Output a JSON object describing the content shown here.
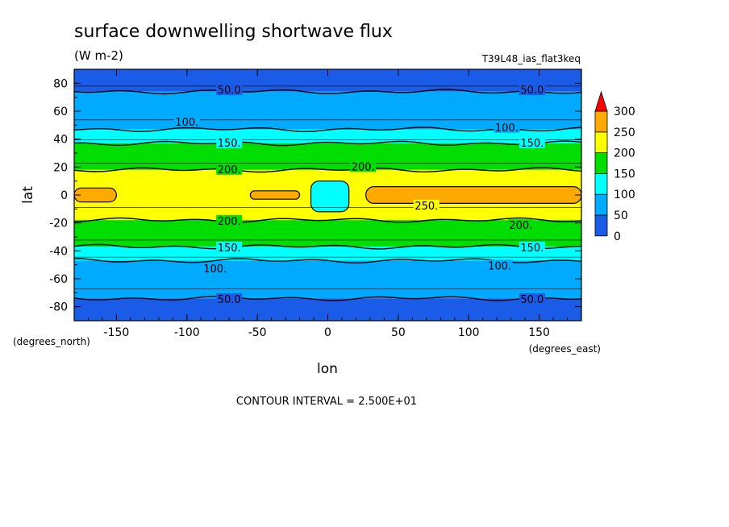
{
  "chart_data": {
    "type": "heatmap",
    "title": "surface downwelling shortwave flux",
    "units": "(W m-2)",
    "dataset": "T39L48_ias_flat3keq",
    "xlabel": "lon",
    "ylabel": "lat",
    "x_units": "(degrees_east)",
    "y_units": "(degrees_north)",
    "xlim": [
      -180,
      180
    ],
    "ylim": [
      -90,
      90
    ],
    "x_ticks": [
      -150,
      -100,
      -50,
      0,
      50,
      100,
      150
    ],
    "x_tick_labels": [
      "-150",
      "-100",
      "-50",
      "0",
      "50",
      "100",
      "150"
    ],
    "y_ticks": [
      80,
      60,
      40,
      20,
      0,
      -20,
      -40,
      -60,
      -80
    ],
    "y_tick_labels": [
      "80",
      "60",
      "40",
      "20",
      "0",
      "-20",
      "-40",
      "-60",
      "-80"
    ],
    "contour_interval": "CONTOUR INTERVAL = 2.500E+01",
    "legend": {
      "placement": "right",
      "levels": [
        0,
        50,
        100,
        150,
        200,
        250,
        300
      ],
      "labels": [
        "0",
        "50",
        "100",
        "150",
        "200",
        "250",
        "300"
      ],
      "colors": [
        "#1a5ce8",
        "#00aaff",
        "#00ffff",
        "#00dd00",
        "#ffff00",
        "#ffaa00",
        "#ff0000"
      ]
    },
    "zonal_bands": [
      {
        "lat_min": 74,
        "lat_max": 90,
        "value_range": [
          0,
          50
        ]
      },
      {
        "lat_min": 47,
        "lat_max": 74,
        "value_range": [
          50,
          100
        ]
      },
      {
        "lat_min": 37,
        "lat_max": 47,
        "value_range": [
          100,
          150
        ]
      },
      {
        "lat_min": 18,
        "lat_max": 37,
        "value_range": [
          150,
          200
        ]
      },
      {
        "lat_min": -18,
        "lat_max": 18,
        "value_range": [
          200,
          250
        ]
      },
      {
        "lat_min": -37,
        "lat_max": -18,
        "value_range": [
          150,
          200
        ]
      },
      {
        "lat_min": -47,
        "lat_max": -37,
        "value_range": [
          100,
          150
        ]
      },
      {
        "lat_min": -74,
        "lat_max": -47,
        "value_range": [
          50,
          100
        ]
      },
      {
        "lat_min": -90,
        "lat_max": -74,
        "value_range": [
          0,
          50
        ]
      }
    ],
    "regions": [
      {
        "description": "equatorial high-flux band",
        "lon_range": [
          27,
          180
        ],
        "lat_range": [
          -6,
          6
        ],
        "value_range": [
          250,
          300
        ]
      },
      {
        "description": "high-flux patch",
        "lon_range": [
          -180,
          -150
        ],
        "lat_range": [
          -5,
          5
        ],
        "value_range": [
          250,
          300
        ]
      },
      {
        "description": "high-flux patch",
        "lon_range": [
          -55,
          -20
        ],
        "lat_range": [
          -3,
          3
        ],
        "value_range": [
          250,
          300
        ]
      },
      {
        "description": "low-flux convective patch",
        "lon_range": [
          -12,
          15
        ],
        "lat_range": [
          -12,
          10
        ],
        "value_range": [
          100,
          200
        ]
      }
    ],
    "contour_labels": [
      {
        "text": "50.0",
        "lon": -70,
        "lat": 75
      },
      {
        "text": "50.0",
        "lon": 145,
        "lat": 75
      },
      {
        "text": "100.",
        "lon": -100,
        "lat": 52
      },
      {
        "text": "100.",
        "lon": 127,
        "lat": 48
      },
      {
        "text": "150.",
        "lon": -70,
        "lat": 37
      },
      {
        "text": "150.",
        "lon": 145,
        "lat": 37
      },
      {
        "text": "200.",
        "lon": -70,
        "lat": 18
      },
      {
        "text": "200.",
        "lon": 25,
        "lat": 20
      },
      {
        "text": "250.",
        "lon": 70,
        "lat": -8
      },
      {
        "text": "200.",
        "lon": -70,
        "lat": -19
      },
      {
        "text": "200.",
        "lon": 137,
        "lat": -22
      },
      {
        "text": "150.",
        "lon": -70,
        "lat": -38
      },
      {
        "text": "150.",
        "lon": 145,
        "lat": -38
      },
      {
        "text": "100.",
        "lon": -80,
        "lat": -53
      },
      {
        "text": "100.",
        "lon": 122,
        "lat": -51
      },
      {
        "text": "50.0",
        "lon": -70,
        "lat": -75
      },
      {
        "text": "50.0",
        "lon": 145,
        "lat": -75
      }
    ]
  }
}
